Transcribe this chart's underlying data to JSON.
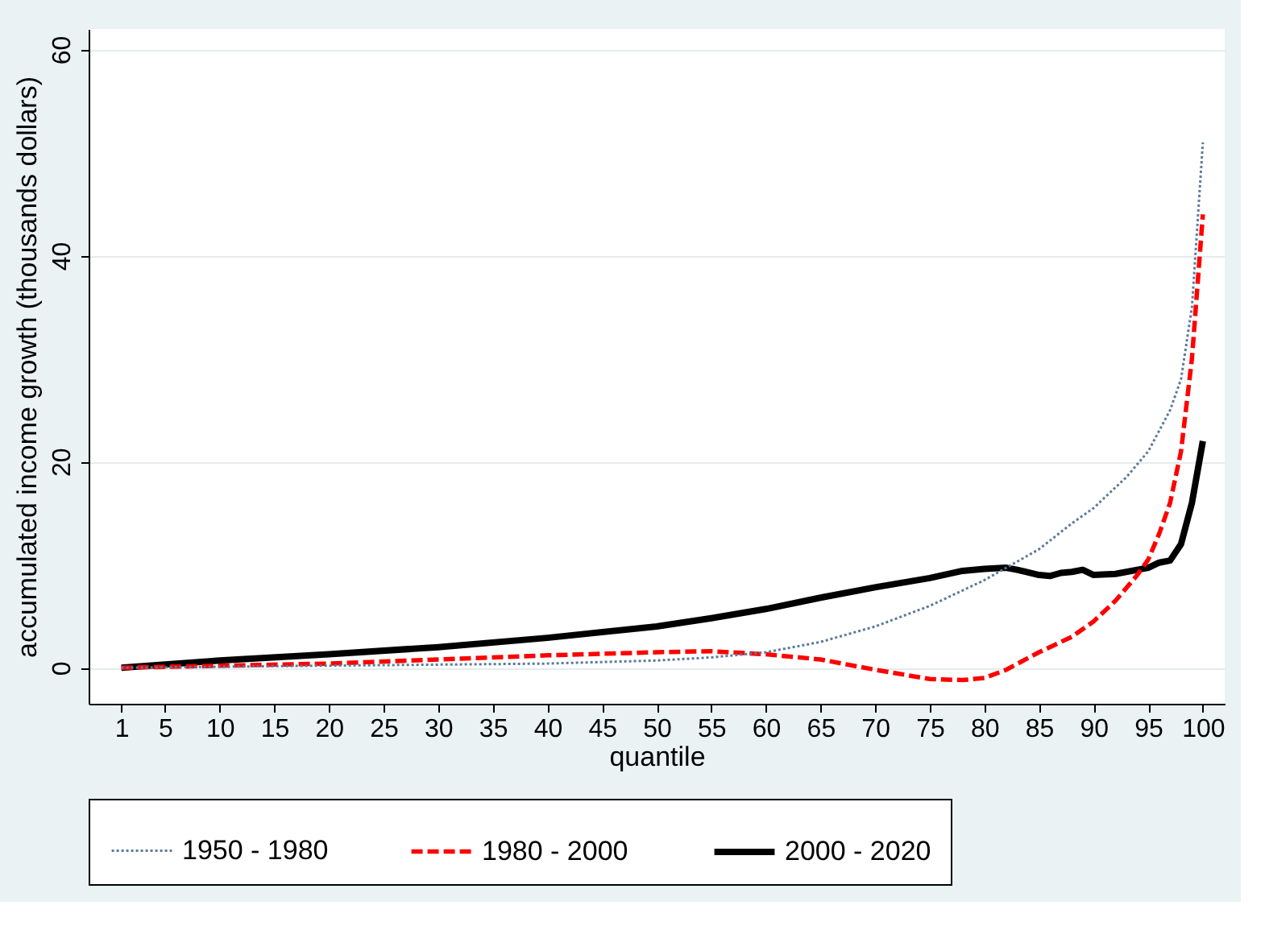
{
  "chart_data": {
    "type": "line",
    "xlabel": "quantile",
    "ylabel": "accumulated income growth (thousands dollars)",
    "xlim": [
      -2,
      102
    ],
    "ylim": [
      -3.5,
      62
    ],
    "xticks": [
      1,
      5,
      10,
      15,
      20,
      25,
      30,
      35,
      40,
      45,
      50,
      55,
      60,
      65,
      70,
      75,
      80,
      85,
      90,
      95,
      100
    ],
    "yticks": [
      0,
      20,
      40,
      60
    ],
    "grid": "y",
    "legend": "bottom",
    "series": [
      {
        "name": "1950 - 1980",
        "color": "#5b7a99",
        "line_style": "dotted",
        "x": [
          1,
          20,
          40,
          50,
          55,
          60,
          65,
          70,
          75,
          80,
          85,
          88,
          90,
          93,
          95,
          97,
          98,
          99,
          100
        ],
        "values": [
          0,
          0.2,
          0.4,
          0.7,
          1.0,
          1.5,
          2.5,
          4,
          6,
          8.5,
          11.5,
          14,
          15.5,
          18.5,
          21,
          25,
          28,
          35,
          51
        ]
      },
      {
        "name": "1980 - 2000",
        "color": "#ff0000",
        "line_style": "dashed",
        "x": [
          1,
          20,
          30,
          40,
          50,
          55,
          60,
          65,
          70,
          75,
          78,
          80,
          82,
          85,
          88,
          90,
          92,
          94,
          95,
          96,
          97,
          98,
          99,
          100
        ],
        "values": [
          0,
          0.4,
          0.8,
          1.2,
          1.5,
          1.6,
          1.3,
          0.8,
          -0.2,
          -1.1,
          -1.2,
          -1.0,
          -0.2,
          1.5,
          3.0,
          4.5,
          6.5,
          9,
          10.5,
          13,
          16,
          21,
          30,
          44
        ]
      },
      {
        "name": "2000 - 2020",
        "color": "#000000",
        "line_style": "solid",
        "x": [
          1,
          10,
          20,
          30,
          40,
          50,
          55,
          60,
          65,
          70,
          75,
          78,
          80,
          82,
          83,
          85,
          86,
          87,
          88,
          89,
          90,
          92,
          95,
          96,
          97,
          98,
          99,
          100
        ],
        "values": [
          0,
          0.7,
          1.3,
          2.0,
          2.9,
          4.0,
          4.8,
          5.7,
          6.8,
          7.8,
          8.7,
          9.4,
          9.6,
          9.7,
          9.5,
          9.0,
          8.9,
          9.2,
          9.3,
          9.5,
          9.0,
          9.1,
          9.7,
          10.2,
          10.4,
          12,
          16,
          22
        ]
      }
    ]
  }
}
